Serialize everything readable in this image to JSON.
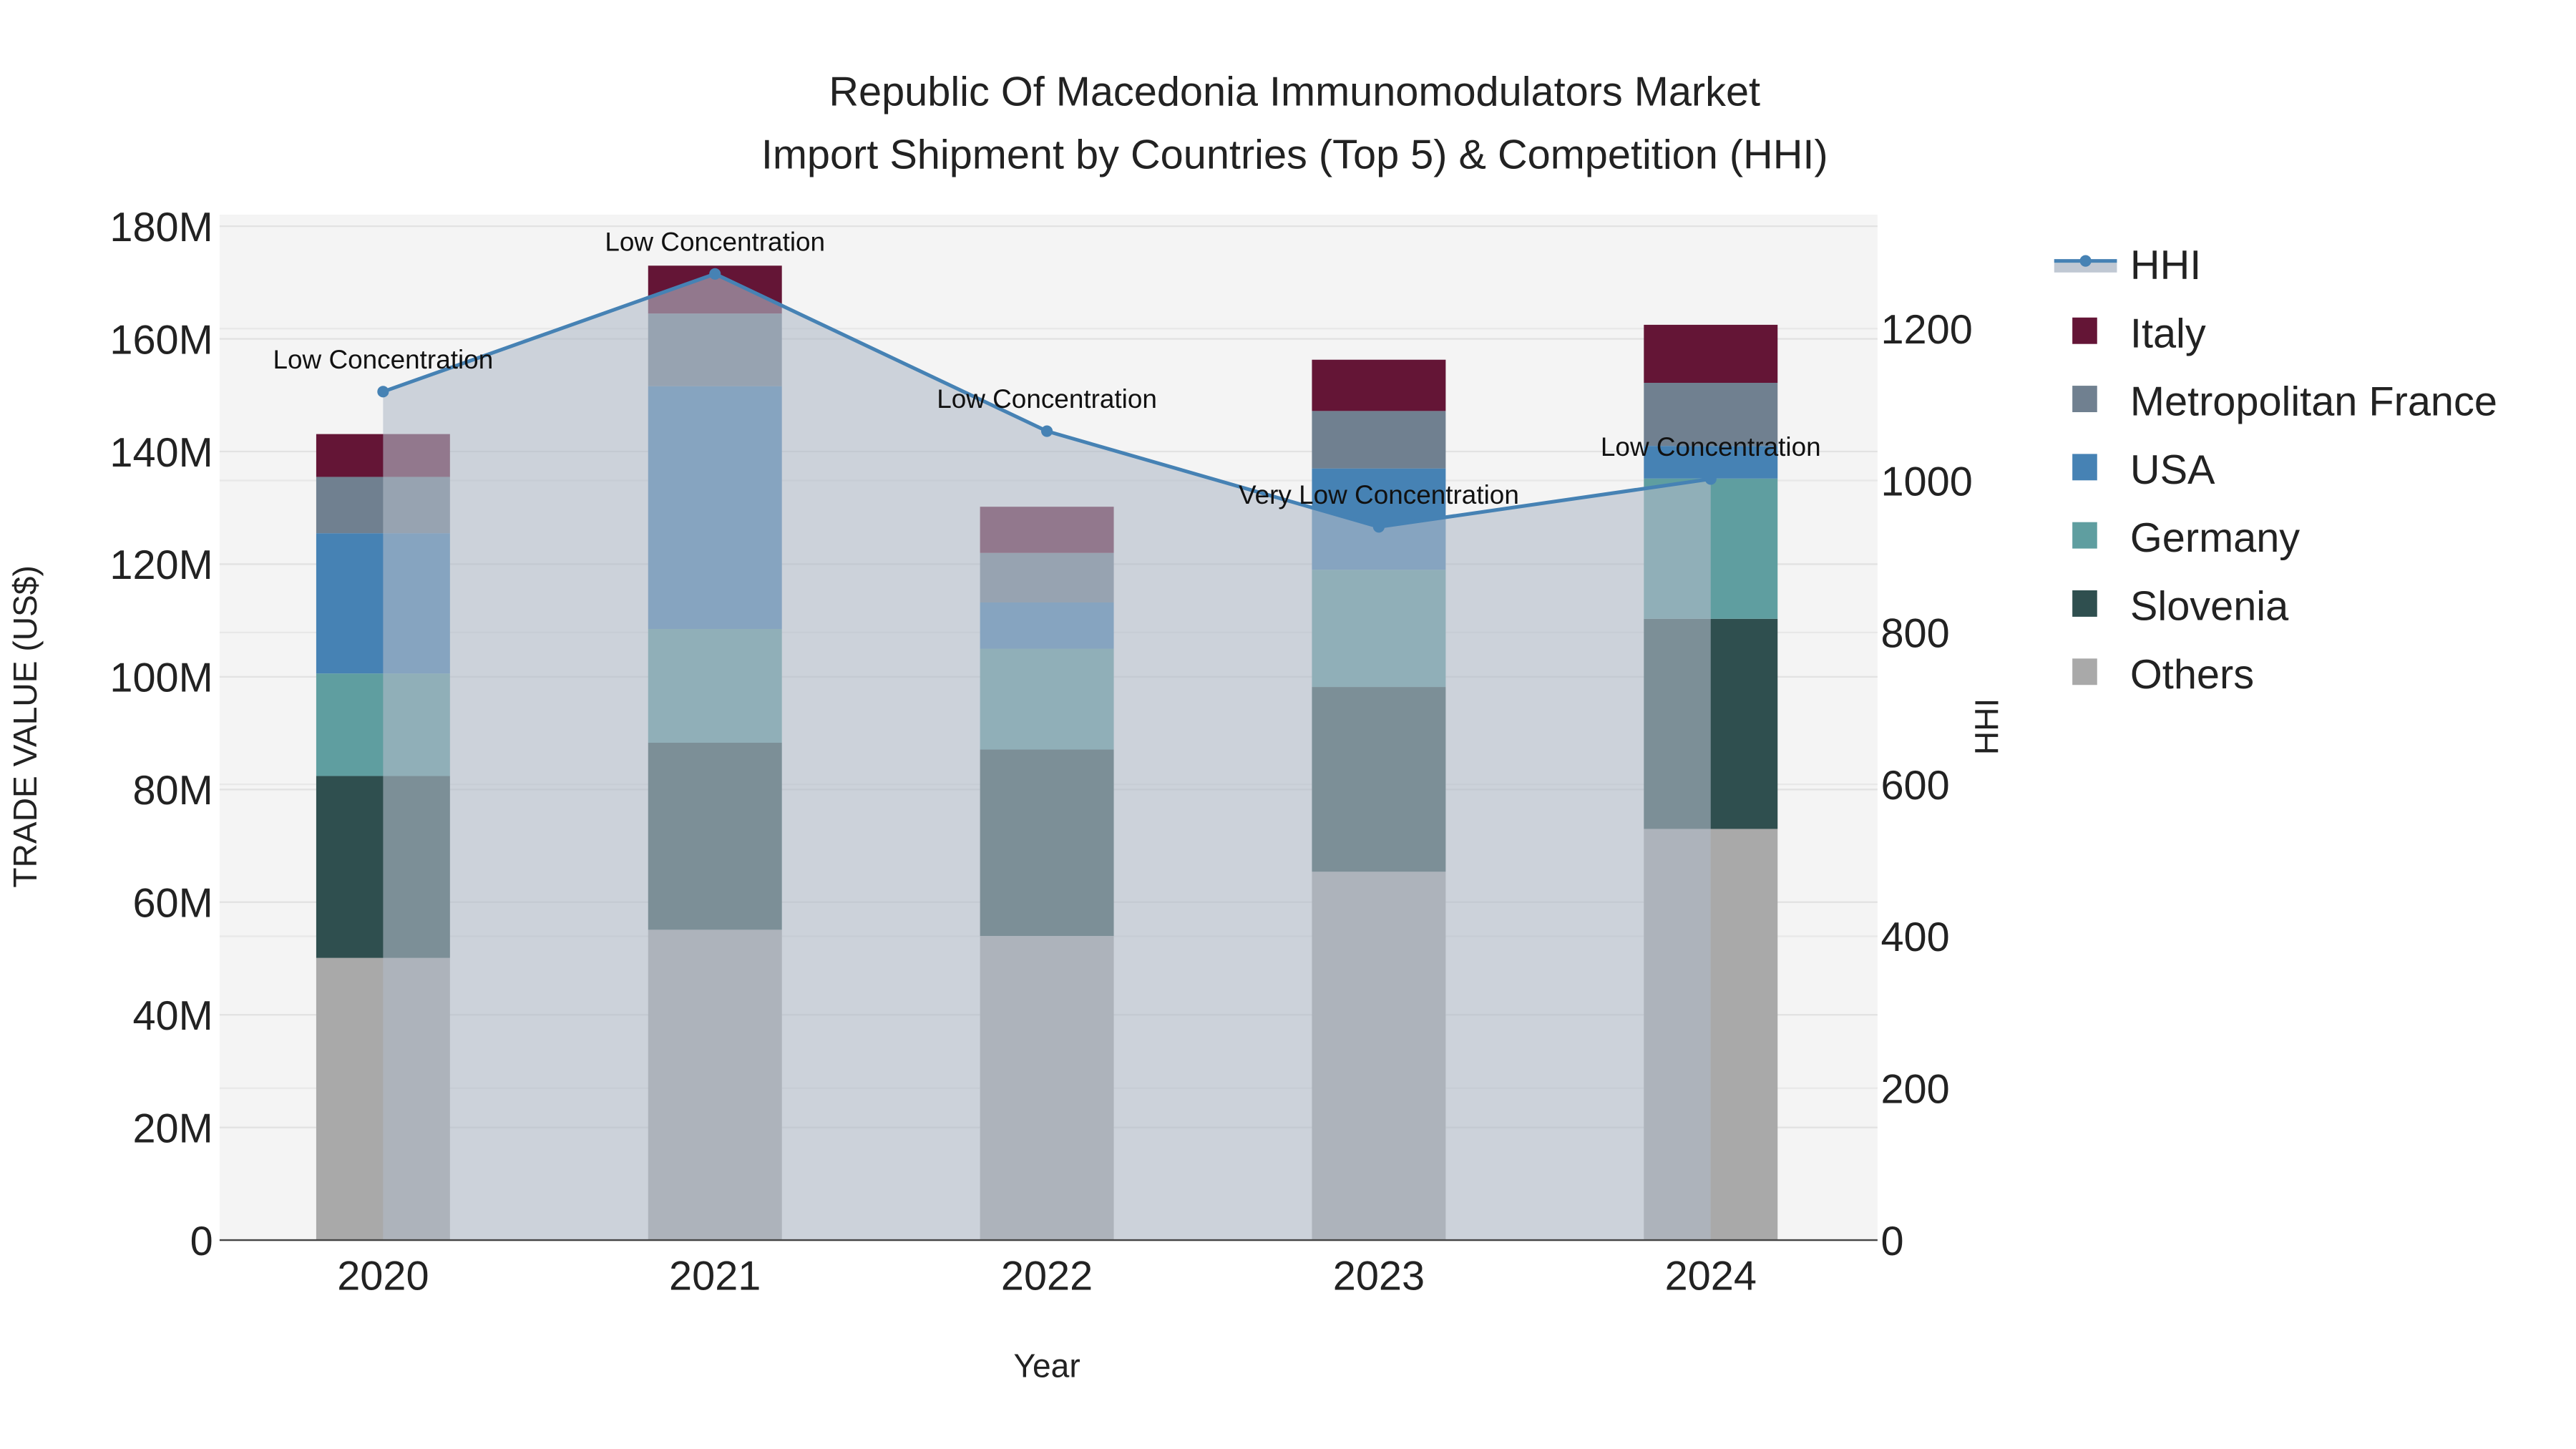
{
  "chart_data": {
    "type": "bar",
    "title_line1": "Republic Of Macedonia Immunomodulators Market",
    "title_line2": "Import Shipment by Countries (Top 5) & Competition (HHI)",
    "xlabel": "Year",
    "ylabel": "TRADE VALUE (US$)",
    "y2label": "HHI",
    "categories": [
      "2020",
      "2021",
      "2022",
      "2023",
      "2024"
    ],
    "ylim": [
      0,
      180
    ],
    "yticks": [
      "0",
      "20M",
      "40M",
      "60M",
      "80M",
      "100M",
      "120M",
      "140M",
      "160M",
      "180M"
    ],
    "y2lim": [
      0,
      1350
    ],
    "y2ticks": [
      "0",
      "200",
      "400",
      "600",
      "800",
      "1000",
      "1200"
    ],
    "units": "million US$",
    "series": [
      {
        "name": "Others",
        "color": "#A9A9A9",
        "values": [
          50.1,
          55.1,
          54.0,
          65.4,
          73.0
        ]
      },
      {
        "name": "Slovenia",
        "color": "#2F4F4F",
        "values": [
          32.3,
          33.2,
          33.1,
          32.8,
          37.3
        ]
      },
      {
        "name": "Germany",
        "color": "#5F9EA0",
        "values": [
          18.2,
          20.2,
          17.9,
          20.8,
          24.9
        ]
      },
      {
        "name": "USA",
        "color": "#4682B4",
        "values": [
          24.9,
          43.1,
          8.2,
          18.0,
          5.8
        ]
      },
      {
        "name": "Metropolitan France",
        "color": "#708090",
        "values": [
          10.0,
          12.9,
          8.8,
          10.2,
          11.2
        ]
      },
      {
        "name": "Italy",
        "color": "#641536",
        "values": [
          7.6,
          8.5,
          8.2,
          9.1,
          10.3
        ]
      }
    ],
    "hhi": {
      "name": "HHI",
      "color": "#4682B4",
      "values": [
        1117,
        1272,
        1065,
        939,
        1002
      ],
      "labels": [
        "Low Concentration",
        "Low Concentration",
        "Low Concentration",
        "Very Low Concentration",
        "Low Concentration"
      ]
    },
    "legend_order": [
      "HHI",
      "Italy",
      "Metropolitan France",
      "USA",
      "Germany",
      "Slovenia",
      "Others"
    ],
    "legend_placement": "right",
    "grid": true
  }
}
